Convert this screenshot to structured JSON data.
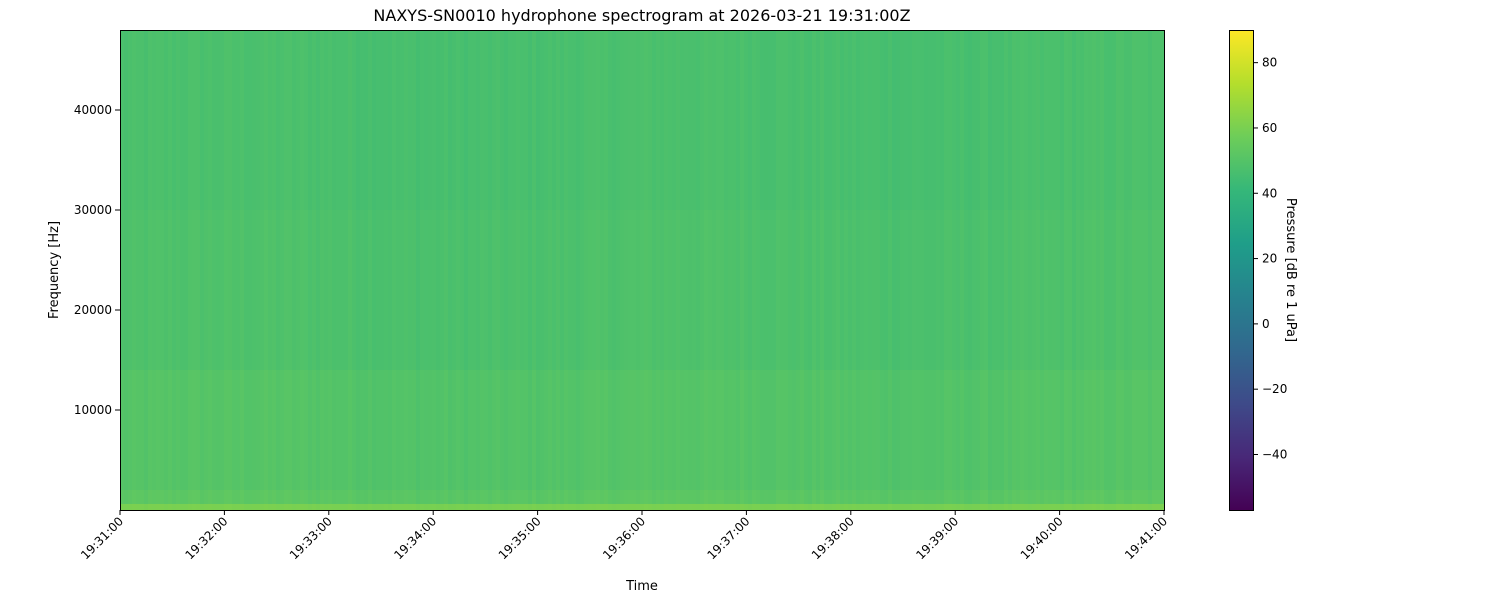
{
  "chart_data": {
    "type": "heatmap",
    "title": "NAXYS-SN0010 hydrophone spectrogram at 2026-03-21 19:31:00Z",
    "xlabel": "Time",
    "ylabel": "Frequency [Hz]",
    "colorbar_label": "Pressure [dB re 1 uPa]",
    "colormap": "viridis",
    "xlim": [
      "19:31:00",
      "19:41:00"
    ],
    "ylim": [
      0,
      48000
    ],
    "clim": [
      -57,
      90
    ],
    "x_ticks": [
      "19:31:00",
      "19:32:00",
      "19:33:00",
      "19:34:00",
      "19:35:00",
      "19:36:00",
      "19:37:00",
      "19:38:00",
      "19:39:00",
      "19:40:00",
      "19:41:00"
    ],
    "y_ticks": [
      10000,
      20000,
      30000,
      40000
    ],
    "y_tick_labels": [
      "10000",
      "20000",
      "30000",
      "40000"
    ],
    "colorbar_ticks": [
      -40,
      -20,
      0,
      20,
      40,
      60,
      80
    ],
    "colorbar_tick_labels": [
      "−40",
      "−20",
      "0",
      "20",
      "40",
      "60",
      "80"
    ],
    "frequency_band_levels_db": [
      {
        "from_hz": 0,
        "to_hz": 600,
        "db": 60
      },
      {
        "from_hz": 600,
        "to_hz": 2000,
        "db": 52
      },
      {
        "from_hz": 2000,
        "to_hz": 14000,
        "db": 50
      },
      {
        "from_hz": 14000,
        "to_hz": 30000,
        "db": 48
      },
      {
        "from_hz": 30000,
        "to_hz": 48000,
        "db": 47
      }
    ],
    "grid": false
  }
}
